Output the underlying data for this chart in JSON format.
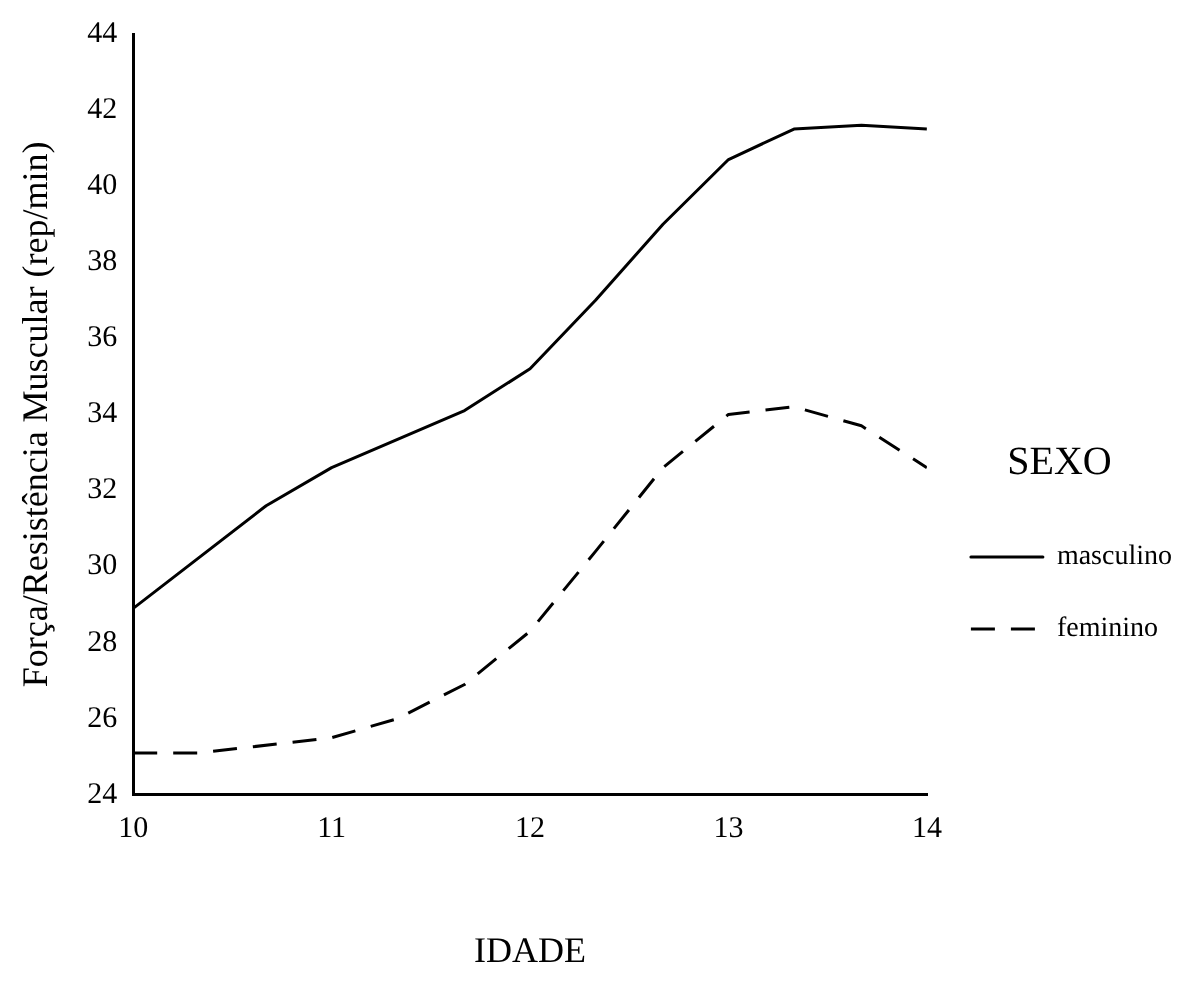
{
  "chart_data": {
    "type": "line",
    "xlabel": "IDADE",
    "ylabel": "Força/Resistência Muscular (rep/min)",
    "legend_title": "SEXO",
    "legend": "right",
    "grid": false,
    "marker": "none",
    "xlim": [
      10,
      14
    ],
    "xticks": [
      10,
      11,
      12,
      13,
      14
    ],
    "ylim": [
      24,
      44
    ],
    "yticks": [
      24,
      26,
      28,
      30,
      32,
      34,
      36,
      38,
      40,
      42,
      44
    ],
    "series": [
      {
        "name": "masculino",
        "color": "#000000",
        "line_style": "solid",
        "x": [
          10,
          10.67,
          11,
          11.67,
          12,
          12.33,
          12.67,
          13,
          13.33,
          13.67,
          14
        ],
        "values": [
          28.9,
          31.6,
          32.6,
          34.1,
          35.2,
          37.0,
          39.0,
          40.7,
          41.5,
          41.6,
          41.5
        ]
      },
      {
        "name": "feminino",
        "color": "#000000",
        "line_style": "dashed",
        "x": [
          10,
          10.33,
          11,
          11.33,
          11.67,
          12,
          12.33,
          12.67,
          13,
          13.33,
          13.67,
          14
        ],
        "values": [
          25.1,
          25.1,
          25.5,
          26.0,
          26.9,
          28.3,
          30.4,
          32.6,
          34.0,
          34.2,
          33.7,
          32.6
        ]
      }
    ]
  }
}
